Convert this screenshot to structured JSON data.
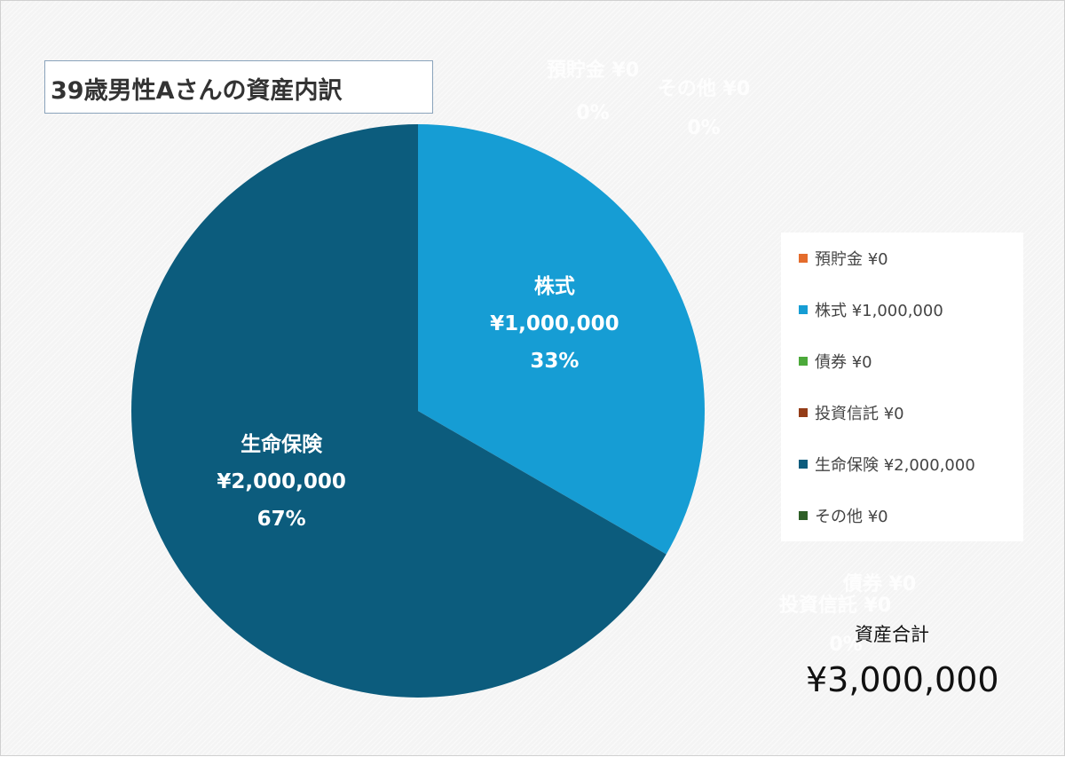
{
  "chart_data": {
    "type": "pie",
    "title": "39歳男性Aさんの資産内訳",
    "categories": [
      "預貯金",
      "株式",
      "債券",
      "投資信託",
      "生命保険",
      "その他"
    ],
    "values": [
      0,
      1000000,
      0,
      0,
      2000000,
      0
    ],
    "value_labels": [
      "¥0",
      "¥1,000,000",
      "¥0",
      "¥0",
      "¥2,000,000",
      "¥0"
    ],
    "percent_labels": [
      "0%",
      "33%",
      "0%",
      "0%",
      "67%",
      "0%"
    ],
    "colors": [
      "#e46c2c",
      "#169dd4",
      "#4ca93a",
      "#943c17",
      "#0c5c7d",
      "#2e5f27"
    ],
    "legend": {
      "position": "right",
      "entries": [
        "預貯金 ¥0",
        "株式 ¥1,000,000",
        "債券 ¥0",
        "投資信託 ¥0",
        "生命保険 ¥2,000,000",
        "その他 ¥0"
      ]
    },
    "stray_zero_labels": [
      "預貯金 ¥0",
      "0%",
      "その他 ¥0",
      "0%",
      "債券 ¥0",
      "投資信託 ¥0",
      "0%"
    ]
  },
  "total": {
    "label": "資産合計",
    "value": "¥3,000,000"
  }
}
